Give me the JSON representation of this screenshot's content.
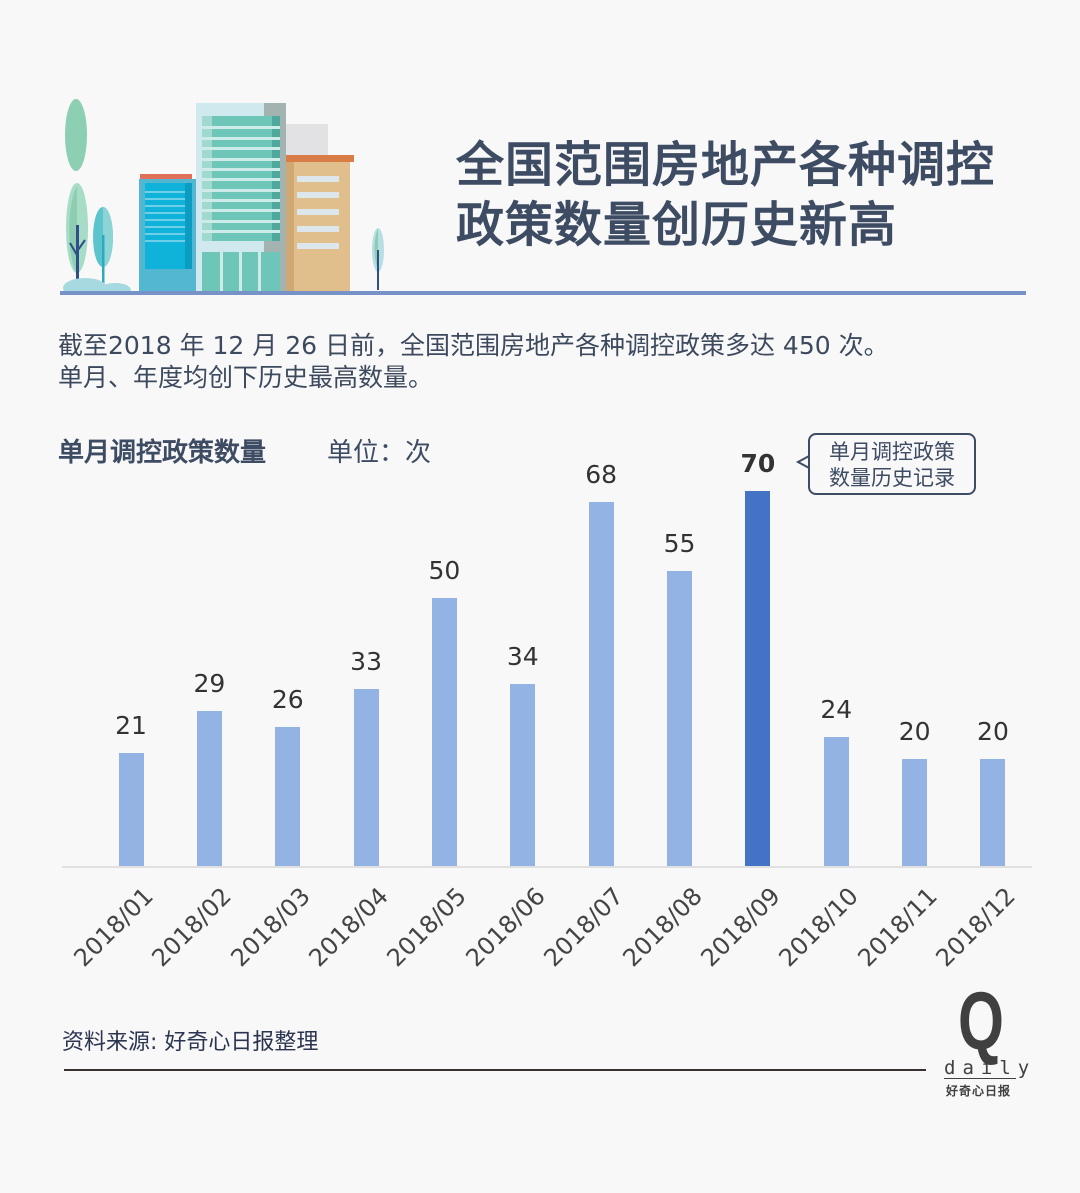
{
  "header": {
    "title_line1": "全国范围房地产各种调控",
    "title_line2": "政策数量创历史新高"
  },
  "intro": {
    "line1": "截至2018 年 12 月 26 日前，全国范围房地产各种调控政策多达 450 次。",
    "line2": "单月、年度均创下历史最高数量。"
  },
  "chart": {
    "title": "单月调控政策数量",
    "unit": "单位：次",
    "callout_line1": "单月调控政策",
    "callout_line2": "数量历史记录"
  },
  "footer": {
    "source": "资料来源: 好奇心日报整理",
    "logo_letter": "Q",
    "logo_word": "daily",
    "logo_cn": "好奇心日报"
  },
  "colors": {
    "bar": "#92b3e3",
    "bar_highlight": "#4472c4",
    "title_text": "#3e4c63",
    "rule": "#7692c6"
  },
  "chart_data": {
    "type": "bar",
    "title": "单月调控政策数量",
    "subtitle": "单位：次",
    "xlabel": "",
    "ylabel": "次",
    "categories": [
      "2018/01",
      "2018/02",
      "2018/03",
      "2018/04",
      "2018/05",
      "2018/06",
      "2018/07",
      "2018/08",
      "2018/09",
      "2018/10",
      "2018/11",
      "2018/12"
    ],
    "values": [
      21,
      29,
      26,
      33,
      50,
      34,
      68,
      55,
      70,
      24,
      20,
      20
    ],
    "highlight_index": 8,
    "annotations": [
      {
        "category": "2018/09",
        "text": "单月调控政策数量历史记录"
      }
    ],
    "ylim": [
      0,
      75
    ],
    "grid": false,
    "legend": "none",
    "x_tick_rotation": -45
  }
}
